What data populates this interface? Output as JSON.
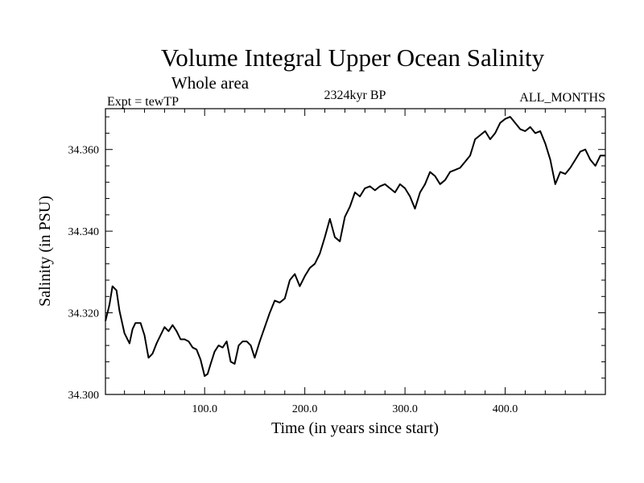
{
  "chart_data": {
    "type": "line",
    "title": "Volume Integral Upper Ocean Salinity",
    "subtitle": "Whole area",
    "left_label": "Expt = tewTP",
    "center_label": "2324kyr BP",
    "right_label": "ALL_MONTHS",
    "xlabel": "Time (in years since start)",
    "ylabel": "Salinity (in PSU)",
    "xlim": [
      1,
      500
    ],
    "ylim": [
      34.3,
      34.37
    ],
    "x_ticks": [
      100,
      200,
      300,
      400
    ],
    "x_tick_labels": [
      "100.0",
      "200.0",
      "300.0",
      "400.0"
    ],
    "y_ticks": [
      34.3,
      34.32,
      34.34,
      34.36
    ],
    "y_tick_labels": [
      "34.300",
      "34.320",
      "34.340",
      "34.360"
    ],
    "grid": false,
    "series": [
      {
        "name": "salinity",
        "color": "#000000",
        "x": [
          1,
          5,
          8,
          12,
          15,
          20,
          25,
          28,
          31,
          36,
          40,
          44,
          48,
          52,
          56,
          60,
          64,
          68,
          72,
          76,
          80,
          84,
          88,
          92,
          96,
          100,
          103,
          106,
          110,
          114,
          118,
          122,
          126,
          130,
          134,
          138,
          142,
          146,
          150,
          155,
          160,
          165,
          170,
          175,
          180,
          185,
          190,
          195,
          200,
          205,
          210,
          215,
          220,
          225,
          230,
          235,
          240,
          245,
          250,
          255,
          260,
          265,
          270,
          275,
          280,
          285,
          290,
          295,
          300,
          305,
          310,
          315,
          320,
          325,
          330,
          335,
          340,
          345,
          350,
          355,
          360,
          365,
          370,
          375,
          380,
          385,
          390,
          395,
          400,
          405,
          410,
          415,
          420,
          425,
          430,
          435,
          440,
          445,
          450,
          455,
          460,
          465,
          470,
          475,
          480,
          485,
          490,
          495,
          500
        ],
        "y": [
          34.318,
          34.322,
          34.3265,
          34.3255,
          34.3205,
          34.315,
          34.3125,
          34.316,
          34.3175,
          34.3175,
          34.3145,
          34.309,
          34.31,
          34.3125,
          34.3145,
          34.3165,
          34.3155,
          34.317,
          34.3155,
          34.3135,
          34.3135,
          34.313,
          34.3115,
          34.311,
          34.3085,
          34.3045,
          34.305,
          34.3075,
          34.3105,
          34.312,
          34.3115,
          34.313,
          34.308,
          34.3075,
          34.312,
          34.313,
          34.313,
          34.312,
          34.309,
          34.313,
          34.3165,
          34.32,
          34.323,
          34.3225,
          34.3235,
          34.328,
          34.3295,
          34.3265,
          34.329,
          34.331,
          34.332,
          34.3345,
          34.3385,
          34.343,
          34.3385,
          34.3375,
          34.3435,
          34.346,
          34.3495,
          34.3485,
          34.3505,
          34.351,
          34.35,
          34.351,
          34.3515,
          34.3505,
          34.3495,
          34.3515,
          34.3505,
          34.3485,
          34.3455,
          34.3495,
          34.3515,
          34.3545,
          34.3535,
          34.3515,
          34.3525,
          34.3545,
          34.355,
          34.3555,
          34.357,
          34.3585,
          34.3625,
          34.3635,
          34.3645,
          34.3625,
          34.364,
          34.3665,
          34.3675,
          34.368,
          34.3665,
          34.365,
          34.3645,
          34.3655,
          34.364,
          34.3645,
          34.3615,
          34.3575,
          34.3515,
          34.3545,
          34.354,
          34.3555,
          34.3575,
          34.3595,
          34.36,
          34.3575,
          34.356,
          34.3585,
          34.3585
        ]
      }
    ]
  }
}
